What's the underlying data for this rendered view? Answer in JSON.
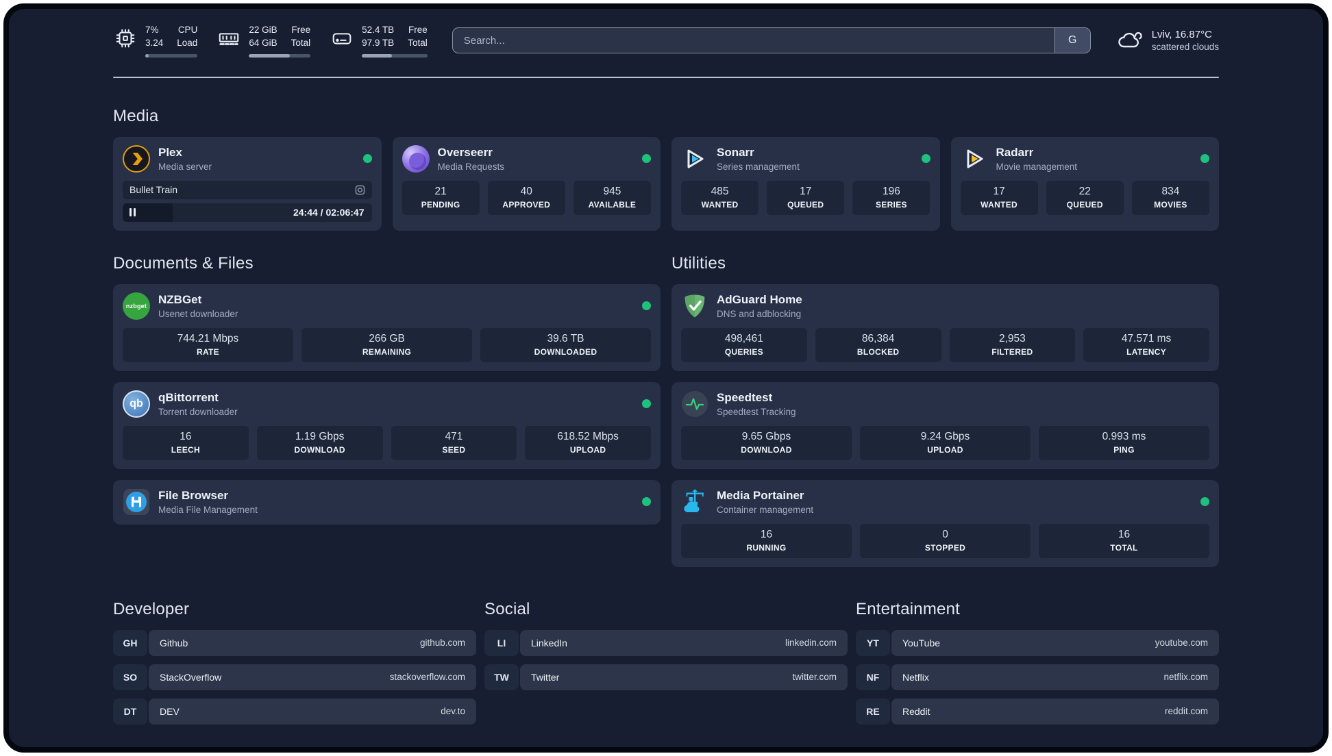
{
  "colors": {
    "status_online": "#1fc27d",
    "plex_gold": "#e5a00d",
    "sonarr_blue": "#38c1f2",
    "radarr_yellow": "#fbbd2d",
    "nzbget_green": "#36a53f",
    "adguard_green": "#68b671",
    "qbittorrent_blue": "#4c7fbe",
    "portainer_blue": "#29b8eb",
    "speedtest_pulse_green": "#2fd37c"
  },
  "topbar": {
    "monitors": [
      {
        "icon": "cpu-chip-icon",
        "a1": "7%",
        "a2": "3.24",
        "b1": "CPU",
        "b2": "Load",
        "progress_pct": 7
      },
      {
        "icon": "memory-icon",
        "a1": "22 GiB",
        "a2": "64 GiB",
        "b1": "Free",
        "b2": "Total",
        "progress_pct": 66
      },
      {
        "icon": "hard-drive-icon",
        "a1": "52.4 TB",
        "a2": "97.9 TB",
        "b1": "Free",
        "b2": "Total",
        "progress_pct": 46
      }
    ],
    "search": {
      "placeholder": "Search...",
      "button_label": "G"
    },
    "weather": {
      "icon": "cloud-icon",
      "location_temp": "Lviv, 16.87°C",
      "condition": "scattered clouds"
    }
  },
  "media": {
    "title": "Media",
    "plex": {
      "name": "Plex",
      "description": "Media server",
      "status_color": "#1fc27d",
      "now_playing": "Bullet Train",
      "progress_pct": 20,
      "time": "24:44 / 02:06:47"
    },
    "overseerr": {
      "name": "Overseerr",
      "description": "Media Requests",
      "status_color": "#1fc27d",
      "stats": [
        {
          "value": "21",
          "label": "PENDING"
        },
        {
          "value": "40",
          "label": "APPROVED"
        },
        {
          "value": "945",
          "label": "AVAILABLE"
        }
      ]
    },
    "sonarr": {
      "name": "Sonarr",
      "description": "Series management",
      "status_color": "#1fc27d",
      "stats": [
        {
          "value": "485",
          "label": "WANTED"
        },
        {
          "value": "17",
          "label": "QUEUED"
        },
        {
          "value": "196",
          "label": "SERIES"
        }
      ]
    },
    "radarr": {
      "name": "Radarr",
      "description": "Movie management",
      "status_color": "#1fc27d",
      "stats": [
        {
          "value": "17",
          "label": "WANTED"
        },
        {
          "value": "22",
          "label": "QUEUED"
        },
        {
          "value": "834",
          "label": "MOVIES"
        }
      ]
    }
  },
  "documents": {
    "title": "Documents & Files",
    "nzbget": {
      "name": "NZBGet",
      "description": "Usenet downloader",
      "status_color": "#1fc27d",
      "icon_label": "nzbget",
      "stats": [
        {
          "value": "744.21 Mbps",
          "label": "RATE"
        },
        {
          "value": "266 GB",
          "label": "REMAINING"
        },
        {
          "value": "39.6 TB",
          "label": "DOWNLOADED"
        }
      ]
    },
    "qbittorrent": {
      "name": "qBittorrent",
      "description": "Torrent downloader",
      "status_color": "#1fc27d",
      "icon_label": "qb",
      "stats": [
        {
          "value": "16",
          "label": "LEECH"
        },
        {
          "value": "1.19 Gbps",
          "label": "DOWNLOAD"
        },
        {
          "value": "471",
          "label": "SEED"
        },
        {
          "value": "618.52 Mbps",
          "label": "UPLOAD"
        }
      ]
    },
    "filebrowser": {
      "name": "File Browser",
      "description": "Media File Management",
      "status_color": "#1fc27d"
    }
  },
  "utilities": {
    "title": "Utilities",
    "adguard": {
      "name": "AdGuard Home",
      "description": "DNS and adblocking",
      "stats": [
        {
          "value": "498,461",
          "label": "QUERIES"
        },
        {
          "value": "86,384",
          "label": "BLOCKED"
        },
        {
          "value": "2,953",
          "label": "FILTERED"
        },
        {
          "value": "47.571 ms",
          "label": "LATENCY"
        }
      ]
    },
    "speedtest": {
      "name": "Speedtest",
      "description": "Speedtest Tracking",
      "stats": [
        {
          "value": "9.65 Gbps",
          "label": "DOWNLOAD"
        },
        {
          "value": "9.24 Gbps",
          "label": "UPLOAD"
        },
        {
          "value": "0.993 ms",
          "label": "PING"
        }
      ]
    },
    "portainer": {
      "name": "Media Portainer",
      "description": "Container management",
      "status_color": "#1fc27d",
      "stats": [
        {
          "value": "16",
          "label": "RUNNING"
        },
        {
          "value": "0",
          "label": "STOPPED"
        },
        {
          "value": "16",
          "label": "TOTAL"
        }
      ]
    }
  },
  "bookmarks": [
    {
      "title": "Developer",
      "items": [
        {
          "abbr": "GH",
          "name": "Github",
          "url": "github.com"
        },
        {
          "abbr": "SO",
          "name": "StackOverflow",
          "url": "stackoverflow.com"
        },
        {
          "abbr": "DT",
          "name": "DEV",
          "url": "dev.to"
        }
      ]
    },
    {
      "title": "Social",
      "items": [
        {
          "abbr": "LI",
          "name": "LinkedIn",
          "url": "linkedin.com"
        },
        {
          "abbr": "TW",
          "name": "Twitter",
          "url": "twitter.com"
        }
      ]
    },
    {
      "title": "Entertainment",
      "items": [
        {
          "abbr": "YT",
          "name": "YouTube",
          "url": "youtube.com"
        },
        {
          "abbr": "NF",
          "name": "Netflix",
          "url": "netflix.com"
        },
        {
          "abbr": "RE",
          "name": "Reddit",
          "url": "reddit.com"
        }
      ]
    }
  ]
}
